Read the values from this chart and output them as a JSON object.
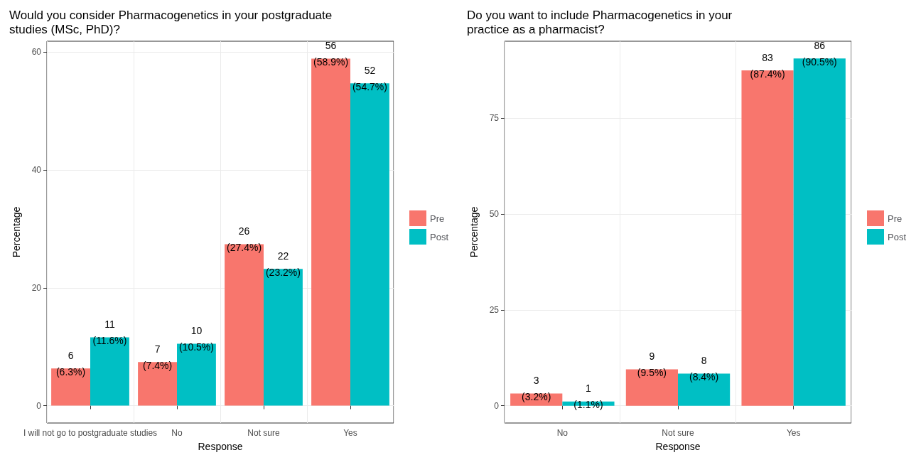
{
  "chart_data": [
    {
      "type": "bar",
      "title": "Would you consider Pharmacogenetics in your postgraduate\nstudies (MSc, PhD)?",
      "xlabel": "Response",
      "ylabel": "Percentage",
      "categories": [
        "I will not go to postgraduate studies",
        "No",
        "Not sure",
        "Yes"
      ],
      "series": [
        {
          "name": "Pre",
          "color": "#f8766d",
          "values": [
            6.3,
            7.4,
            27.4,
            58.9
          ],
          "value_labels": [
            "6\n(6.3%)",
            "7\n(7.4%)",
            "26\n(27.4%)",
            "56\n(58.9%)"
          ]
        },
        {
          "name": "Post",
          "color": "#00bfc4",
          "values": [
            11.6,
            10.5,
            23.2,
            54.7
          ],
          "value_labels": [
            "11\n(11.6%)",
            "10\n(10.5%)",
            "22\n(23.2%)",
            "52\n(54.7%)"
          ]
        }
      ],
      "ylim": [
        -2.95,
        61.85
      ],
      "yticks": [
        0,
        20,
        40,
        60
      ],
      "grid": true,
      "legend": "right"
    },
    {
      "type": "bar",
      "title": "Do you want to include Pharmacogenetics in your\npractice as a pharmacist?",
      "xlabel": "Response",
      "ylabel": "Percentage",
      "categories": [
        "No",
        "Not sure",
        "Yes"
      ],
      "series": [
        {
          "name": "Pre",
          "color": "#f8766d",
          "values": [
            3.2,
            9.5,
            87.4
          ],
          "value_labels": [
            "3\n(3.2%)",
            "9\n(9.5%)",
            "83\n(87.4%)"
          ]
        },
        {
          "name": "Post",
          "color": "#00bfc4",
          "values": [
            1.1,
            8.4,
            90.5
          ],
          "value_labels": [
            "1\n(1.1%)",
            "8\n(8.4%)",
            "86\n(90.5%)"
          ]
        }
      ],
      "ylim": [
        -4.5,
        95
      ],
      "yticks": [
        0,
        25,
        50,
        75
      ],
      "grid": true,
      "legend": "right"
    }
  ]
}
